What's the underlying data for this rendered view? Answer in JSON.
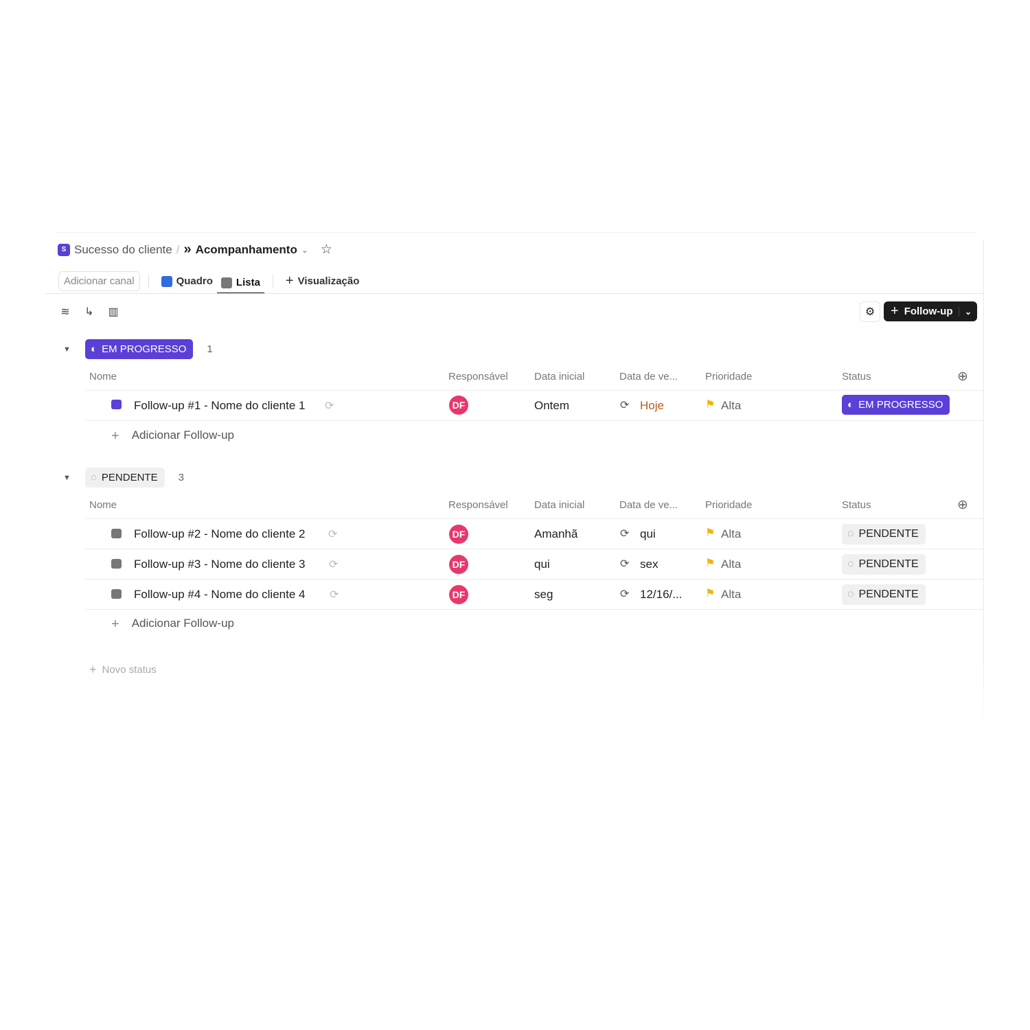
{
  "breadcrumb": {
    "space": "Sucesso do cliente",
    "space_initial": "S",
    "separator": "/",
    "list": "Acompanhamento"
  },
  "tabs": {
    "add_channel": "Adicionar canal",
    "board": "Quadro",
    "list": "Lista",
    "add_view": "Visualização"
  },
  "toolbar": {
    "add_button": "Follow-up"
  },
  "columns": {
    "name": "Nome",
    "assignee": "Responsável",
    "start": "Data inicial",
    "due": "Data de ve...",
    "priority": "Prioridade",
    "status": "Status"
  },
  "groups": [
    {
      "status": "EM PROGRESSO",
      "count": "1",
      "color": "#5b3fd6",
      "add_label": "Adicionar Follow-up",
      "rows": [
        {
          "name": "Follow-up #1 - Nome do cliente 1",
          "assignee": "DF",
          "start": "Ontem",
          "due": "Hoje",
          "due_color": "#b85c1c",
          "priority": "Alta",
          "status": "EM PROGRESSO"
        }
      ]
    },
    {
      "status": "PENDENTE",
      "count": "3",
      "add_label": "Adicionar Follow-up",
      "rows": [
        {
          "name": "Follow-up #2 - Nome do cliente 2",
          "assignee": "DF",
          "start": "Amanhã",
          "due": "qui",
          "priority": "Alta",
          "status": "PENDENTE"
        },
        {
          "name": "Follow-up #3 - Nome do cliente 3",
          "assignee": "DF",
          "start": "qui",
          "due": "sex",
          "priority": "Alta",
          "status": "PENDENTE"
        },
        {
          "name": "Follow-up #4 - Nome do cliente 4",
          "assignee": "DF",
          "start": "seg",
          "due": "12/16/...",
          "priority": "Alta",
          "status": "PENDENTE"
        }
      ]
    }
  ],
  "new_status": "Novo status"
}
